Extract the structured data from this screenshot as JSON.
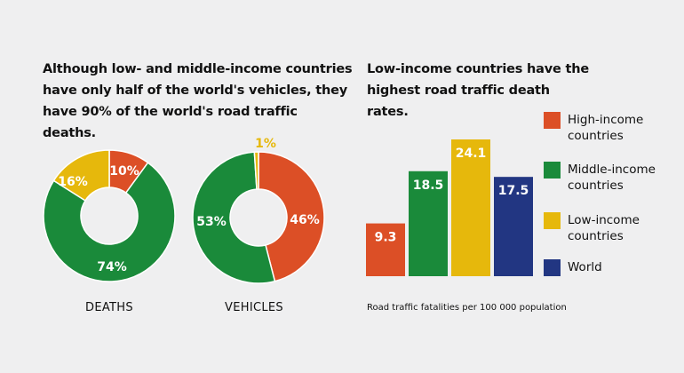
{
  "colors": {
    "high": "#dc4f26",
    "middle": "#1a8a3a",
    "low": "#e6b80c",
    "world": "#223682",
    "background": "#efeff0",
    "white": "#ffffff"
  },
  "left_heading": "Although low- and middle-income countries have only half of the world's vehicles, they have 90% of the world's road traffic deaths.",
  "right_heading": "Low-income countries have the highest road traffic death rates.",
  "legend": [
    {
      "label": "High-income countries",
      "color": "#dc4f26"
    },
    {
      "label": "Middle-income countries",
      "color": "#1a8a3a"
    },
    {
      "label": "Low-income countries",
      "color": "#e6b80c"
    },
    {
      "label": "World",
      "color": "#223682"
    }
  ],
  "footnote": "Road traffic fatalities per 100 000 population",
  "chart_data": [
    {
      "type": "pie",
      "title": "DEATHS",
      "slices": [
        {
          "label": "10%",
          "value": 10,
          "color": "#dc4f26"
        },
        {
          "label": "74%",
          "value": 74,
          "color": "#1a8a3a"
        },
        {
          "label": "16%",
          "value": 16,
          "color": "#e6b80c"
        }
      ]
    },
    {
      "type": "pie",
      "title": "VEHICLES",
      "slices": [
        {
          "label": "46%",
          "value": 46,
          "color": "#dc4f26"
        },
        {
          "label": "53%",
          "value": 53,
          "color": "#1a8a3a"
        },
        {
          "label": "1%",
          "value": 1,
          "color": "#e6b80c"
        }
      ]
    },
    {
      "type": "bar",
      "title": "",
      "categories": [
        "High-income countries",
        "Middle-income countries",
        "Low-income countries",
        "World"
      ],
      "values": [
        9.3,
        18.5,
        24.1,
        17.5
      ],
      "labels": [
        "9.3",
        "18.5",
        "24.1",
        "17.5"
      ],
      "colors": [
        "#dc4f26",
        "#1a8a3a",
        "#e6b80c",
        "#223682"
      ],
      "ylim": [
        0,
        26
      ],
      "ylabel": "",
      "grid": false
    }
  ]
}
